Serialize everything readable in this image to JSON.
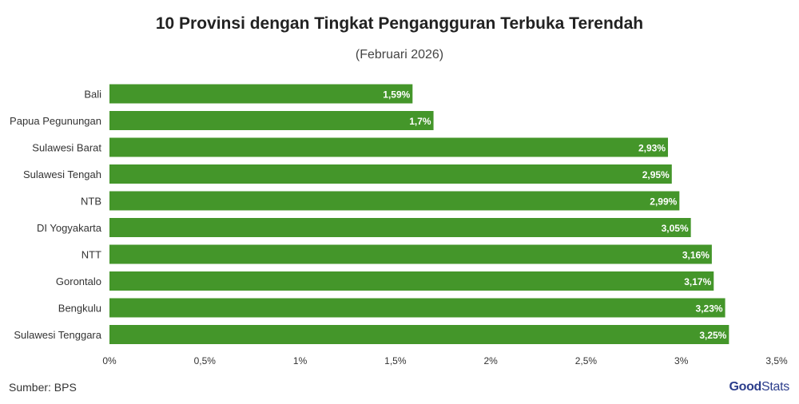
{
  "header": {
    "title": "10 Provinsi dengan Tingkat Pengangguran Terbuka Terendah",
    "subtitle": "(Februari 2026)"
  },
  "footer": {
    "source": "Sumber: BPS",
    "logo_part1": "Good",
    "logo_part2": "Stats"
  },
  "colors": {
    "bar": "#44962a",
    "label": "#ffffff"
  },
  "chart_data": {
    "type": "bar",
    "orientation": "horizontal",
    "title": "10 Provinsi dengan Tingkat Pengangguran Terbuka Terendah",
    "subtitle": "(Februari 2026)",
    "categories": [
      "Bali",
      "Papua Pegunungan",
      "Sulawesi Barat",
      "Sulawesi Tengah",
      "NTB",
      "DI Yogyakarta",
      "NTT",
      "Gorontalo",
      "Bengkulu",
      "Sulawesi Tenggara"
    ],
    "values": [
      1.59,
      1.7,
      2.93,
      2.95,
      2.99,
      3.05,
      3.16,
      3.17,
      3.23,
      3.25
    ],
    "value_labels": [
      "1,59%",
      "1,7%",
      "2,93%",
      "2,95%",
      "2,99%",
      "3,05%",
      "3,16%",
      "3,17%",
      "3,23%",
      "3,25%"
    ],
    "x_ticks": [
      0,
      0.5,
      1,
      1.5,
      2,
      2.5,
      3,
      3.5
    ],
    "x_tick_labels": [
      "0%",
      "0,5%",
      "1%",
      "1,5%",
      "2%",
      "2,5%",
      "3%",
      "3,5%"
    ],
    "xlim": [
      0,
      3.5
    ],
    "xlabel": "",
    "ylabel": "",
    "grid": false,
    "legend": "none"
  }
}
